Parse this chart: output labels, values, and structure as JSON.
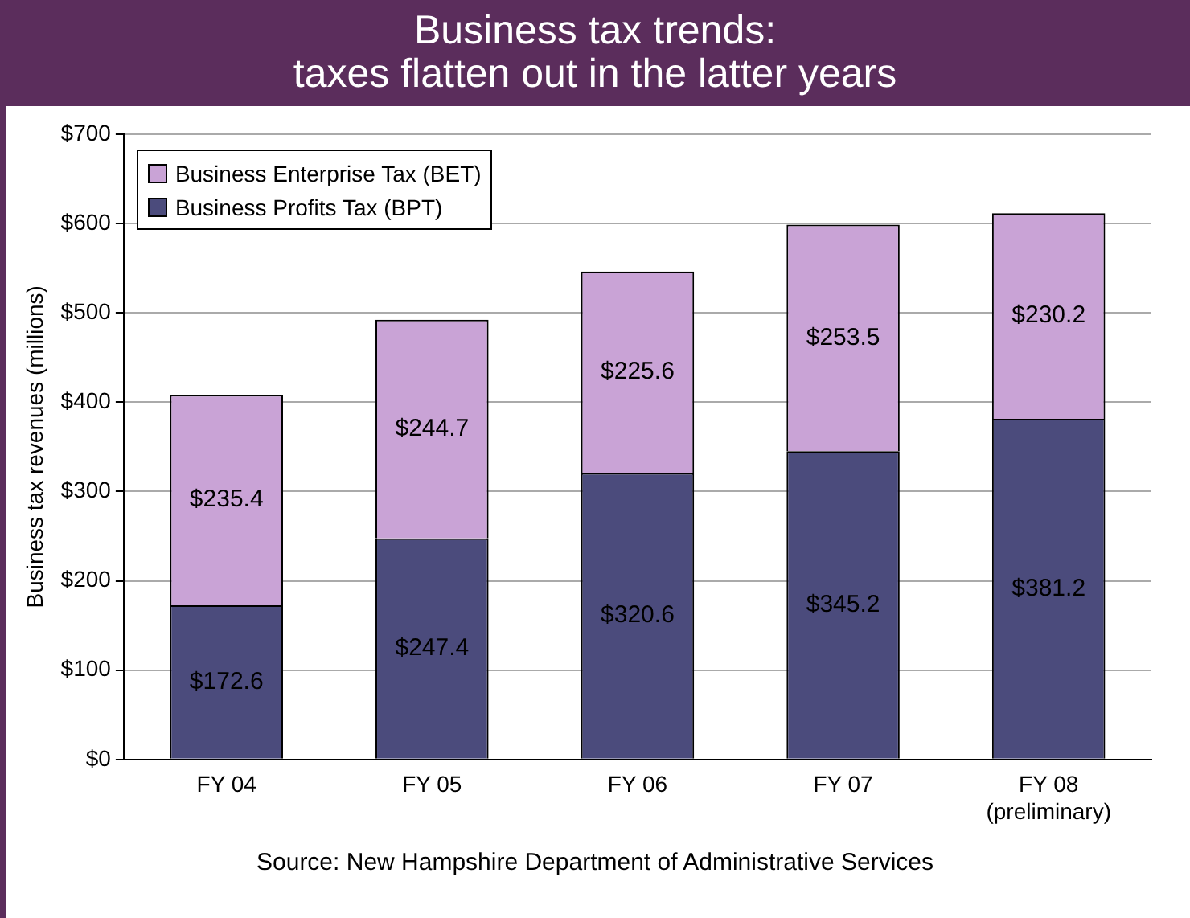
{
  "chart_data": {
    "type": "bar",
    "title": "Business tax trends:\ntaxes flatten out in the latter years",
    "ylabel": "Business tax revenues (millions)",
    "categories": [
      "FY 04",
      "FY 05",
      "FY 06",
      "FY 07",
      "FY 08\n(preliminary)"
    ],
    "stacked": true,
    "series": [
      {
        "name": "Business Profits Tax (BPT)",
        "color": "#4b4b7c",
        "values": [
          172.6,
          247.4,
          320.6,
          345.2,
          381.2
        ],
        "value_labels": [
          "$172.6",
          "$247.4",
          "$320.6",
          "$345.2",
          "$381.2"
        ]
      },
      {
        "name": "Business Enterprise Tax (BET)",
        "color": "#c9a3d6",
        "values": [
          235.4,
          244.7,
          225.6,
          253.5,
          230.2
        ],
        "value_labels": [
          "$235.4",
          "$244.7",
          "$225.6",
          "$253.5",
          "$230.2"
        ]
      }
    ],
    "ylim": [
      0,
      700
    ],
    "yticks": [
      {
        "value": 0,
        "label": "$0"
      },
      {
        "value": 100,
        "label": "$100"
      },
      {
        "value": 200,
        "label": "$200"
      },
      {
        "value": 300,
        "label": "$300"
      },
      {
        "value": 400,
        "label": "$400"
      },
      {
        "value": 500,
        "label": "$500"
      },
      {
        "value": 600,
        "label": "$600"
      },
      {
        "value": 700,
        "label": "$700"
      }
    ],
    "grid": "y",
    "legend": "top left",
    "annotations": [
      "Source: New Hampshire Department of Administrative Services"
    ]
  }
}
